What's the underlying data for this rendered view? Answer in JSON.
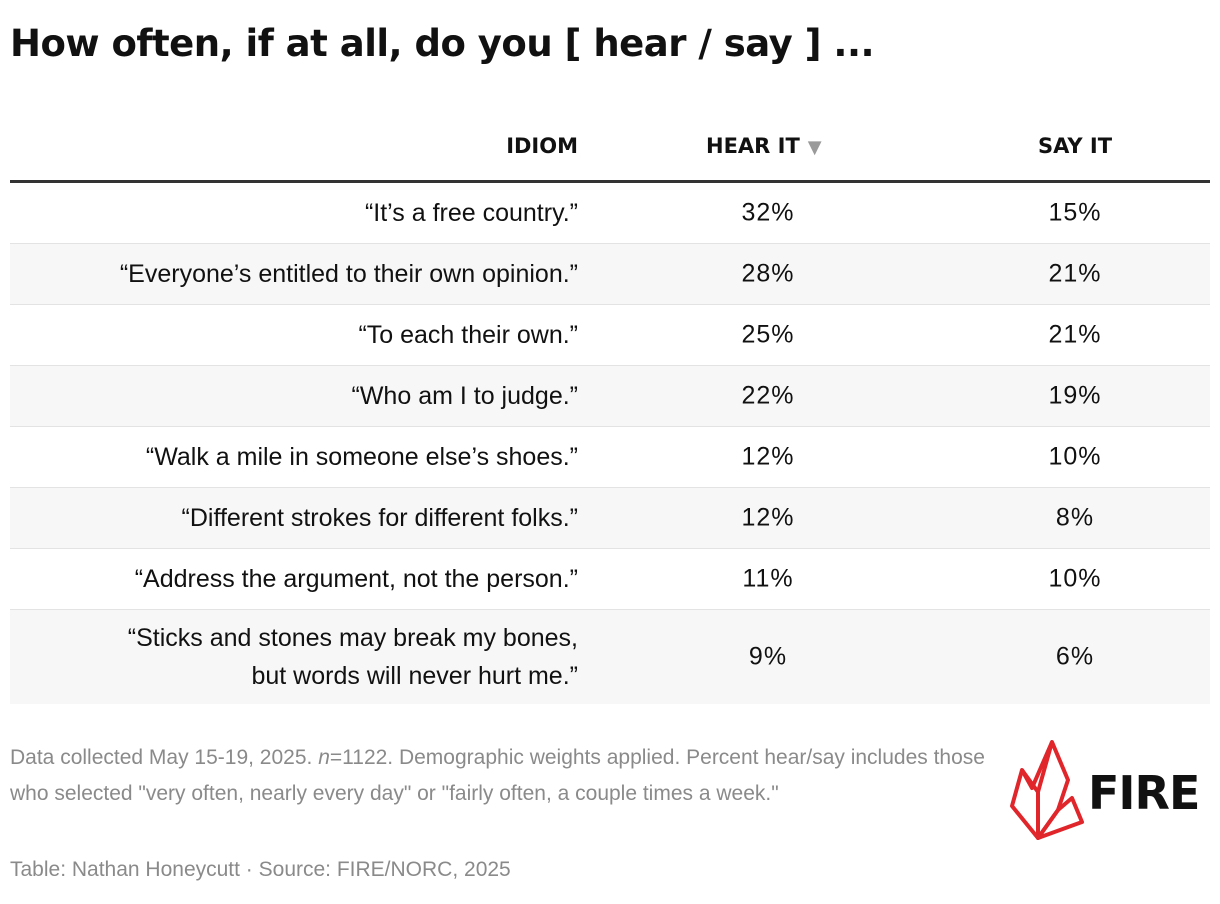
{
  "title": "How often, if at all, do you [ hear / say ] ...",
  "columns": {
    "idiom": "IDIOM",
    "hear": "HEAR IT",
    "sort_indicator": "▼",
    "say": "SAY IT"
  },
  "rows": [
    {
      "idiom": "“It’s a free country.”",
      "hear": "32%",
      "say": "15%"
    },
    {
      "idiom": "“Everyone’s entitled to their own opinion.”",
      "hear": "28%",
      "say": "21%"
    },
    {
      "idiom": "“To each their own.”",
      "hear": "25%",
      "say": "21%"
    },
    {
      "idiom": "“Who am I to judge.”",
      "hear": "22%",
      "say": "19%"
    },
    {
      "idiom": "“Walk a mile in someone else’s shoes.”",
      "hear": "12%",
      "say": "10%"
    },
    {
      "idiom": "“Different strokes for different folks.”",
      "hear": "12%",
      "say": "8%"
    },
    {
      "idiom": "“Address the argument, not the person.”",
      "hear": "11%",
      "say": "10%"
    },
    {
      "idiom": "“Sticks and stones may break my bones,\nbut words will never hurt me.”",
      "hear": "9%",
      "say": "6%"
    }
  ],
  "footer": {
    "note_pre": "Data collected May 15-19, 2025. ",
    "note_n": "n",
    "note_post": "=1122. Demographic weights applied. Percent hear/say includes those who selected \"very often, nearly every day\" or \"fairly often, a couple times a week.\"",
    "credit": "Table: Nathan Honeycutt · Source: FIRE/NORC, 2025"
  },
  "logo": {
    "text": "FIRE",
    "color": "#e0262b"
  },
  "colors": {
    "header_rule": "#333333",
    "row_alt": "#f7f7f7",
    "muted_text": "#8a8a8a",
    "sort_arrow": "#9a9a9a"
  },
  "chart_data": {
    "type": "table",
    "title": "How often, if at all, do you [ hear / say ] ...",
    "columns": [
      "IDIOM",
      "HEAR IT",
      "SAY IT"
    ],
    "sorted_by": "HEAR IT",
    "rows": [
      [
        "“It’s a free country.”",
        32,
        15
      ],
      [
        "“Everyone’s entitled to their own opinion.”",
        28,
        21
      ],
      [
        "“To each their own.”",
        25,
        21
      ],
      [
        "“Who am I to judge.”",
        22,
        19
      ],
      [
        "“Walk a mile in someone else’s shoes.”",
        12,
        10
      ],
      [
        "“Different strokes for different folks.”",
        12,
        8
      ],
      [
        "“Address the argument, not the person.”",
        11,
        10
      ],
      [
        "“Sticks and stones may break my bones, but words will never hurt me.”",
        9,
        6
      ]
    ]
  }
}
